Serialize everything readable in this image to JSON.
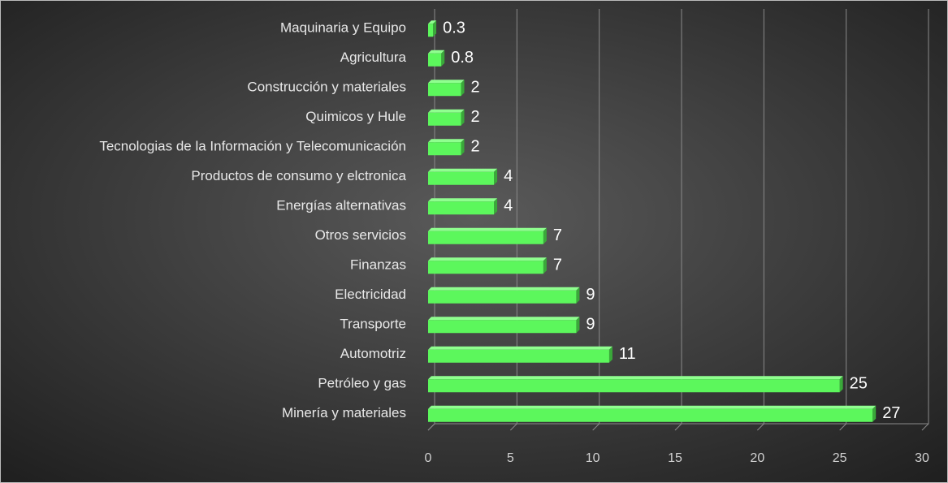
{
  "chart_data": {
    "type": "bar",
    "orientation": "horizontal",
    "categories": [
      "Maquinaria y Equipo",
      "Agricultura",
      "Construcción y materiales",
      "Quimicos y Hule",
      "Tecnologias de la Información y Telecomunicación",
      "Productos de consumo y elctronica",
      "Energías alternativas",
      "Otros servicios",
      "Finanzas",
      "Electricidad",
      "Transporte",
      "Automotriz",
      "Petróleo  y gas",
      "Minería y materiales"
    ],
    "values": [
      0.3,
      0.8,
      2,
      2,
      2,
      4,
      4,
      7,
      7,
      9,
      9,
      11,
      25,
      27
    ],
    "color": "#5cf75c",
    "xlim": [
      0,
      30
    ],
    "xticks": [
      0,
      5,
      10,
      15,
      20,
      25,
      30
    ],
    "grid": true
  }
}
